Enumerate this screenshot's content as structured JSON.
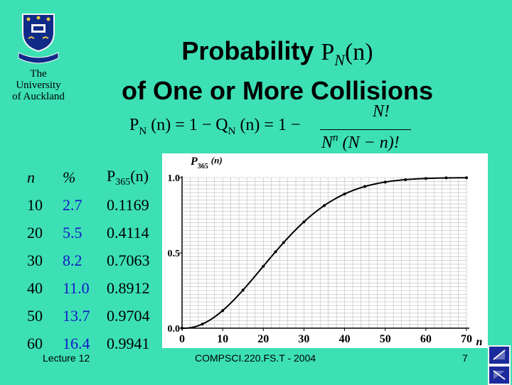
{
  "logo": {
    "line1": "The",
    "line2": "University",
    "line3": "of Auckland",
    "motto": "INGENIO ET LABORE",
    "colors": {
      "blue": "#102a88",
      "gold": "#e8c64a"
    }
  },
  "title": {
    "prefix": "Probability ",
    "symbol": "P",
    "subscript": "N",
    "arg": "(n)",
    "line2": "of One or More Collisions"
  },
  "formula": {
    "lhs": "P",
    "lhs_sub": "N",
    "lhs_rest": " (n) = 1 − Q",
    "q_sub": "N",
    "q_rest": " (n) = 1 −",
    "numerator": "N!",
    "den_base": "N",
    "den_sup": "n",
    "den_rest": " (N − n)!"
  },
  "table": {
    "headers": {
      "n": "n",
      "pct": "%",
      "p": "P",
      "p_sub": "365",
      "p_arg": "(n)"
    },
    "rows": [
      {
        "n": "10",
        "pct": "2.7",
        "p": "0.1169"
      },
      {
        "n": "20",
        "pct": "5.5",
        "p": "0.4114"
      },
      {
        "n": "30",
        "pct": "8.2",
        "p": "0.7063"
      },
      {
        "n": "40",
        "pct": "11.0",
        "p": "0.8912"
      },
      {
        "n": "50",
        "pct": "13.7",
        "p": "0.9704"
      },
      {
        "n": "60",
        "pct": "16.4",
        "p": "0.9941"
      }
    ]
  },
  "chart_data": {
    "type": "line",
    "ylabel": "P",
    "ylabel_sub": "365",
    "ylabel_arg": "(n)",
    "xlabel": "n",
    "xlim": [
      0,
      70
    ],
    "ylim": [
      0,
      1
    ],
    "xticks": [
      "0",
      "10",
      "20",
      "30",
      "40",
      "50",
      "60",
      "70"
    ],
    "yticks": [
      "0.0",
      "0.5",
      "1.0"
    ],
    "grid": true,
    "series": [
      {
        "x": [
          0,
          5,
          10,
          15,
          20,
          23,
          25,
          30,
          35,
          40,
          45,
          50,
          55,
          60,
          65,
          70
        ],
        "values": [
          0,
          0.027,
          0.117,
          0.253,
          0.411,
          0.507,
          0.569,
          0.706,
          0.814,
          0.891,
          0.941,
          0.97,
          0.986,
          0.994,
          0.998,
          0.999
        ]
      }
    ],
    "markers": {
      "x": [
        0,
        5,
        10,
        15,
        20,
        23,
        25,
        30,
        35,
        40,
        45,
        50,
        55,
        60,
        65,
        70
      ],
      "values": [
        0,
        0.027,
        0.117,
        0.253,
        0.411,
        0.507,
        0.569,
        0.706,
        0.814,
        0.891,
        0.941,
        0.97,
        0.986,
        0.994,
        0.998,
        0.999
      ]
    },
    "colors": {
      "background": "#ffffff",
      "line": "#000000",
      "grid": "#bbbbbb"
    }
  },
  "footer": {
    "left": "Lecture 12",
    "middle": "COMPSCI.220.FS.T - 2004",
    "page": "7"
  },
  "nav": [
    "prev-slide-icon",
    "next-slide-icon"
  ],
  "colors": {
    "background": "#3ce0b4",
    "nav_blue": "#1d2a9c",
    "value_blue": "#1518c8"
  }
}
